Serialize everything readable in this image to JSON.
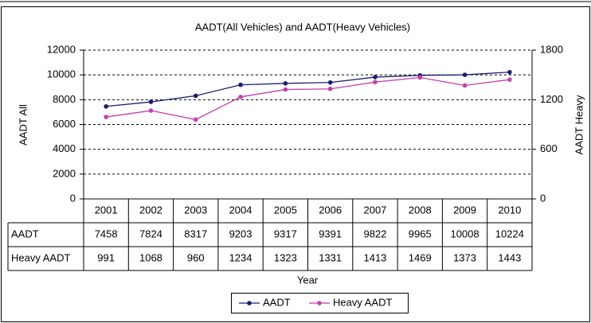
{
  "chart_data": {
    "type": "line",
    "title": "AADT(All Vehicles) and AADT(Heavy Vehicles)",
    "x_label": "Year",
    "y_label": "AADT All",
    "y2_label": "AADT Heavy",
    "categories": [
      "2001",
      "2002",
      "2003",
      "2004",
      "2005",
      "2006",
      "2007",
      "2008",
      "2009",
      "2010"
    ],
    "series": [
      {
        "name": "AADT",
        "color": "#1c1c6e",
        "values": [
          7458,
          7824,
          8317,
          9203,
          9317,
          9391,
          9822,
          9965,
          10008,
          10224
        ]
      },
      {
        "name": "Heavy AADT",
        "color": "#c23fb0",
        "axis": "y2",
        "values": [
          991,
          1068,
          960,
          1234,
          1323,
          1331,
          1413,
          1469,
          1373,
          1443
        ]
      }
    ],
    "ylim": [
      0,
      12000
    ],
    "yticks": [
      0,
      2000,
      4000,
      6000,
      8000,
      10000,
      12000
    ],
    "y2lim": [
      0,
      1800
    ],
    "y2ticks": [
      0,
      600,
      1200,
      1800
    ],
    "grid": true,
    "legend": "bottom"
  }
}
